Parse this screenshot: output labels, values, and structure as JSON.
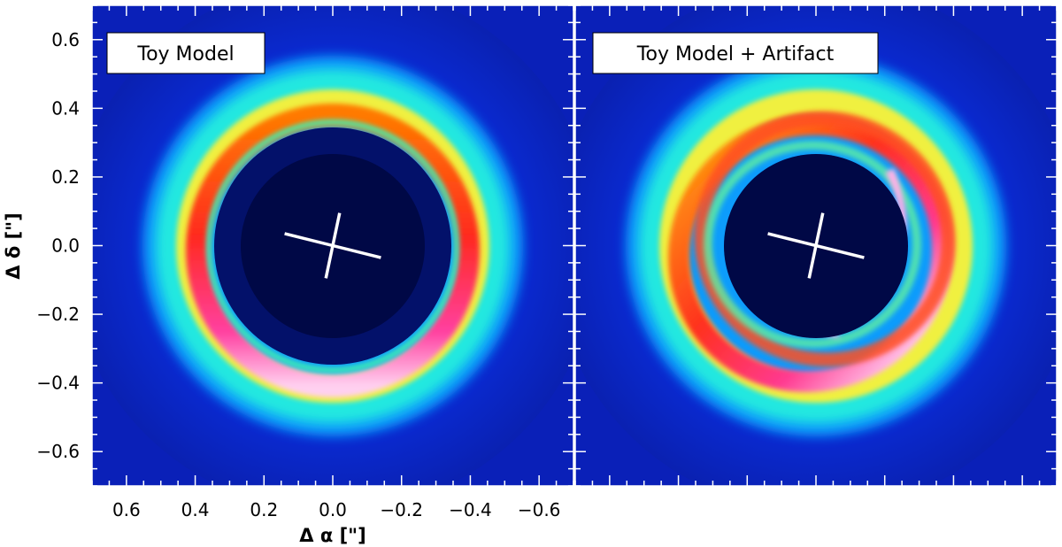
{
  "chart_data": [
    {
      "type": "heatmap",
      "panel_label": "Toy Model",
      "xlabel": "Δ α [\"]",
      "ylabel": "Δ δ [\"]",
      "xlim": [
        0.7,
        -0.7
      ],
      "ylim": [
        -0.7,
        0.7
      ],
      "x_ticks": [
        0.6,
        0.4,
        0.2,
        0.0,
        -0.2,
        -0.4,
        -0.6
      ],
      "y_ticks": [
        0.6,
        0.4,
        0.2,
        0.0,
        -0.2,
        -0.4,
        -0.6
      ],
      "x_tick_labels": [
        "0.6",
        "0.4",
        "0.2",
        "0.0",
        "−0.2",
        "−0.4",
        "−0.6"
      ],
      "y_tick_labels": [
        "0.6",
        "0.4",
        "0.2",
        "0.0",
        "−0.2",
        "−0.4",
        "−0.6"
      ],
      "ring": {
        "center": [
          0.0,
          0.0
        ],
        "radius": 0.39,
        "brightest_side": "south",
        "mask_radius": 0.27
      },
      "cross": {
        "center": [
          0.0,
          0.0
        ],
        "major_axis": [
          [
            0.14,
            0.035
          ],
          [
            -0.14,
            -0.035
          ]
        ],
        "minor_axis": [
          [
            -0.02,
            0.095
          ],
          [
            0.02,
            -0.095
          ]
        ]
      },
      "colormap": "rainbow (dark blue → cyan → yellow → red → magenta → white)"
    },
    {
      "type": "heatmap",
      "panel_label": "Toy Model + Artifact",
      "xlim": [
        0.7,
        -0.7
      ],
      "ylim": [
        -0.7,
        0.7
      ],
      "ring": {
        "center": [
          0.0,
          0.0
        ],
        "radius": 0.39,
        "brightest_side": "south-east",
        "mask_radius": 0.27
      },
      "cross": {
        "center": [
          0.0,
          0.0
        ],
        "major_axis": [
          [
            0.14,
            0.035
          ],
          [
            -0.14,
            -0.035
          ]
        ],
        "minor_axis": [
          [
            -0.02,
            0.095
          ],
          [
            0.02,
            -0.095
          ]
        ]
      },
      "colormap": "rainbow (dark blue → cyan → yellow → red → magenta → white)"
    }
  ]
}
